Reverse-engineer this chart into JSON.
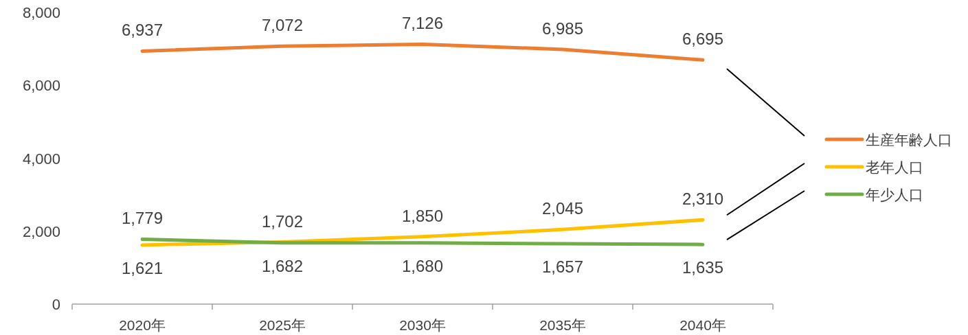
{
  "chart_data": {
    "type": "line",
    "categories": [
      "2020年",
      "2025年",
      "2030年",
      "2035年",
      "2040年"
    ],
    "series": [
      {
        "name": "生産年齢人口",
        "color": "#ed7d31",
        "values": [
          6937,
          7072,
          7126,
          6985,
          6695
        ],
        "value_labels": [
          "6,937",
          "7,072",
          "7,126",
          "6,985",
          "6,695"
        ]
      },
      {
        "name": "老年人口",
        "color": "#ffc000",
        "values": [
          1621,
          1702,
          1850,
          2045,
          2310
        ],
        "value_labels": [
          "1,621",
          "1,702",
          "1,850",
          "2,045",
          "2,310"
        ]
      },
      {
        "name": "年少人口",
        "color": "#70ad47",
        "values": [
          1779,
          1682,
          1680,
          1657,
          1635
        ],
        "value_labels": [
          "1,779",
          "1,682",
          "1,680",
          "1,657",
          "1,635"
        ]
      }
    ],
    "ylim": [
      0,
      8000
    ],
    "yticks": [
      {
        "value": 0,
        "label": "0"
      },
      {
        "value": 2000,
        "label": "2,000"
      },
      {
        "value": 4000,
        "label": "4,000"
      },
      {
        "value": 6000,
        "label": "6,000"
      },
      {
        "value": 8000,
        "label": "8,000"
      }
    ],
    "legend": "right"
  }
}
